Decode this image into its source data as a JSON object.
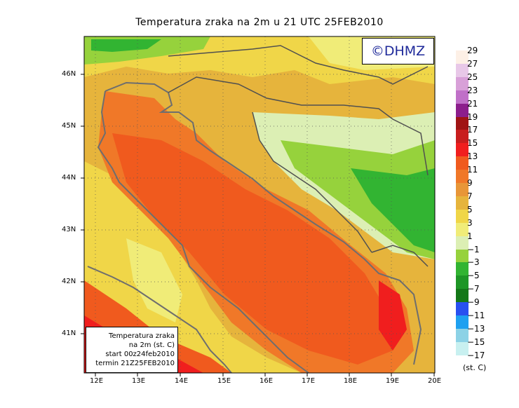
{
  "title": "Temperatura zraka na 2m u 21 UTC 25FEB2010",
  "logo": "©DHMZ",
  "infobox": {
    "line1": "Temperatura zraka",
    "line2": "na 2m (st. C)",
    "line3": "start 00z24feb2010",
    "line4": "termin 21Z25FEB2010"
  },
  "lat_labels": [
    "46N",
    "45N",
    "44N",
    "43N",
    "42N",
    "41N"
  ],
  "lon_labels": [
    "12E",
    "13E",
    "14E",
    "15E",
    "16E",
    "17E",
    "18E",
    "19E",
    "20E"
  ],
  "legend": {
    "labels": [
      "29",
      "27",
      "25",
      "23",
      "21",
      "19",
      "17",
      "15",
      "13",
      "11",
      "9",
      "7",
      "5",
      "3",
      "1",
      "−1",
      "−3",
      "−5",
      "−7",
      "−9",
      "−11",
      "−13",
      "−15",
      "−17"
    ],
    "colors": [
      "#fdf0e6",
      "#e8c8e8",
      "#d8a0d8",
      "#c070c8",
      "#8c1e8c",
      "#a01414",
      "#c81e1e",
      "#f01e1e",
      "#f05a1e",
      "#f07828",
      "#e89638",
      "#e6b43c",
      "#f0d648",
      "#f0ec78",
      "#dcefb4",
      "#96d23c",
      "#32b432",
      "#1e9626",
      "#147818",
      "#2850f0",
      "#1ea0f0",
      "#8cd2e6",
      "#c8f0f0"
    ],
    "units": "(st. C)"
  }
}
